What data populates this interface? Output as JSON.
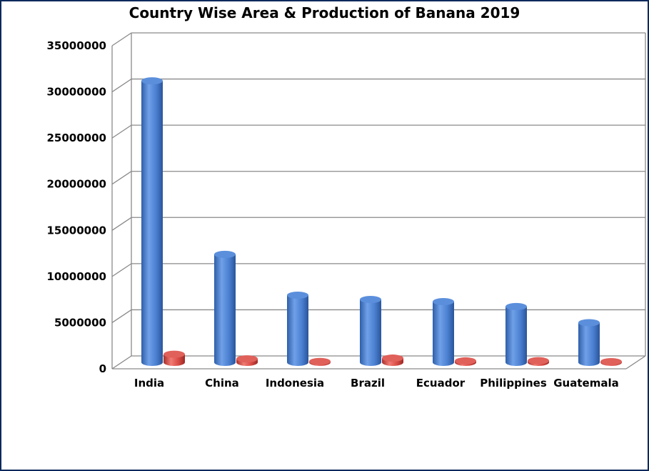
{
  "chart_data": {
    "type": "bar",
    "title": "Country Wise Area & Production of Banana 2019",
    "categories": [
      "India",
      "China",
      "Indonesia",
      "Brazil",
      "Ecuador",
      "Philippines",
      "Guatemala"
    ],
    "series": [
      {
        "values": [
          30500000,
          11700000,
          7280000,
          6810000,
          6580000,
          6050000,
          4300000
        ],
        "color": "#4a7fd0"
      },
      {
        "values": [
          880000,
          380000,
          100000,
          460000,
          160000,
          180000,
          80000
        ],
        "color": "#d94a44"
      }
    ],
    "yticks": [
      "0",
      "5000000",
      "10000000",
      "15000000",
      "20000000",
      "25000000",
      "30000000",
      "35000000"
    ],
    "ylim": [
      0,
      35000000
    ],
    "grid": true,
    "style": "3d-cylinder"
  }
}
